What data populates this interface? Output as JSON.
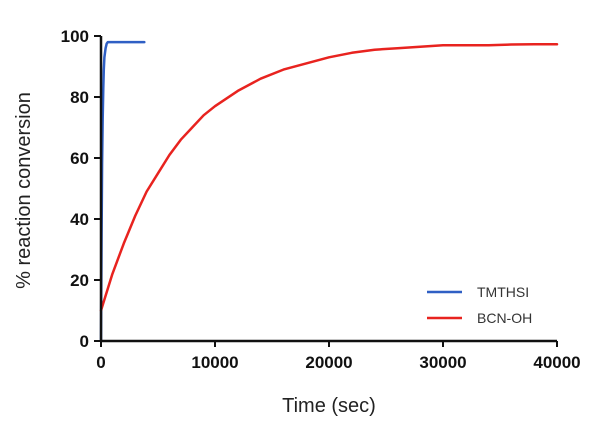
{
  "chart_data": {
    "type": "line",
    "title": "",
    "xlabel": "Time (sec)",
    "ylabel": "% reaction conversion",
    "xlim": [
      0,
      40000
    ],
    "ylim": [
      0,
      100
    ],
    "x_ticks": [
      0,
      10000,
      20000,
      30000,
      40000
    ],
    "x_tick_labels": [
      "0",
      "10000",
      "20000",
      "30000",
      "40000"
    ],
    "y_ticks": [
      0,
      20,
      40,
      60,
      80,
      100
    ],
    "y_tick_labels": [
      "0",
      "20",
      "40",
      "60",
      "80",
      "100"
    ],
    "grid": false,
    "legend_position": "bottom-right",
    "series": [
      {
        "name": "TMTHSI",
        "color": "#2f5fc4",
        "x": [
          0,
          50,
          100,
          150,
          200,
          250,
          300,
          400,
          500,
          600,
          800,
          1000,
          1500,
          2000,
          3000,
          3800
        ],
        "y": [
          0,
          35,
          58,
          73,
          83,
          89,
          93,
          96,
          97.5,
          98,
          98,
          98,
          98,
          98,
          98,
          98
        ]
      },
      {
        "name": "BCN-OH",
        "color": "#e8231f",
        "x": [
          0,
          1000,
          2000,
          3000,
          4000,
          5000,
          6000,
          7000,
          8000,
          9000,
          10000,
          12000,
          14000,
          16000,
          18000,
          20000,
          22000,
          24000,
          26000,
          28000,
          30000,
          32000,
          34000,
          36000,
          38000,
          40000
        ],
        "y": [
          10,
          22,
          32,
          41,
          49,
          55,
          61,
          66,
          70,
          74,
          77,
          82,
          86,
          89,
          91,
          93,
          94.5,
          95.5,
          96,
          96.5,
          97,
          97,
          97,
          97.2,
          97.3,
          97.3
        ]
      }
    ]
  }
}
